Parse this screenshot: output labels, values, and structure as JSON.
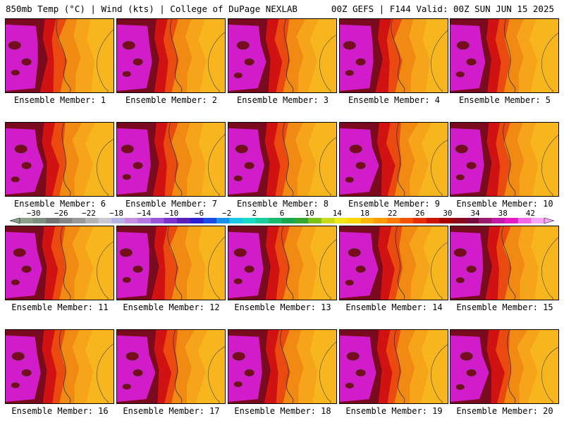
{
  "header": {
    "left": "850mb Temp (°C) | Wind (kts) | College of DuPage NEXLAB",
    "right": "00Z GEFS | F144 Valid: 00Z SUN JUN 15 2025"
  },
  "members": [
    {
      "label": "Ensemble Member: 1",
      "row": 0,
      "col": 0,
      "heat": 0.7
    },
    {
      "label": "Ensemble Member: 2",
      "row": 0,
      "col": 1,
      "heat": 0.72
    },
    {
      "label": "Ensemble Member: 3",
      "row": 0,
      "col": 2,
      "heat": 0.7
    },
    {
      "label": "Ensemble Member: 4",
      "row": 0,
      "col": 3,
      "heat": 0.8
    },
    {
      "label": "Ensemble Member: 5",
      "row": 0,
      "col": 4,
      "heat": 0.55
    },
    {
      "label": "Ensemble Member: 6",
      "row": 1,
      "col": 0,
      "heat": 0.6
    },
    {
      "label": "Ensemble Member: 7",
      "row": 1,
      "col": 1,
      "heat": 0.72
    },
    {
      "label": "Ensemble Member: 8",
      "row": 1,
      "col": 2,
      "heat": 0.62
    },
    {
      "label": "Ensemble Member: 9",
      "row": 1,
      "col": 3,
      "heat": 0.72
    },
    {
      "label": "Ensemble Member: 10",
      "row": 1,
      "col": 4,
      "heat": 0.6
    },
    {
      "label": "Ensemble Member: 11",
      "row": 2,
      "col": 0,
      "heat": 0.6
    },
    {
      "label": "Ensemble Member: 12",
      "row": 2,
      "col": 1,
      "heat": 0.7
    },
    {
      "label": "Ensemble Member: 13",
      "row": 2,
      "col": 2,
      "heat": 0.72
    },
    {
      "label": "Ensemble Member: 14",
      "row": 2,
      "col": 3,
      "heat": 0.82
    },
    {
      "label": "Ensemble Member: 15",
      "row": 2,
      "col": 4,
      "heat": 0.65
    },
    {
      "label": "Ensemble Member: 16",
      "row": 3,
      "col": 0,
      "heat": 0.6
    },
    {
      "label": "Ensemble Member: 17",
      "row": 3,
      "col": 1,
      "heat": 0.68
    },
    {
      "label": "Ensemble Member: 18",
      "row": 3,
      "col": 2,
      "heat": 0.72
    },
    {
      "label": "Ensemble Member: 19",
      "row": 3,
      "col": 3,
      "heat": 0.7
    },
    {
      "label": "Ensemble Member: 20",
      "row": 3,
      "col": 4,
      "heat": 0.58
    }
  ],
  "colorbar": {
    "ticks": [
      "−30",
      "−26",
      "−22",
      "−18",
      "−14",
      "−10",
      "−6",
      "−2",
      "2",
      "6",
      "10",
      "14",
      "18",
      "22",
      "26",
      "30",
      "34",
      "38",
      "42"
    ],
    "min": -32,
    "max": 44,
    "step": 2,
    "colors": [
      "#8aa08a",
      "#7f8f7f",
      "#737373",
      "#858585",
      "#999999",
      "#b3b3b3",
      "#c9c9d6",
      "#b3b3e6",
      "#c58fe0",
      "#b57ae0",
      "#9a55d9",
      "#7a33cc",
      "#5a1fb8",
      "#2b1fcf",
      "#1a4de6",
      "#1a8fe6",
      "#1ac7e6",
      "#19d9c7",
      "#1acca0",
      "#19b86e",
      "#1aa64d",
      "#33a633",
      "#7ac21a",
      "#c7d91a",
      "#f0e619",
      "#ffd600",
      "#ffb800",
      "#ff9a00",
      "#ff7a00",
      "#f55200",
      "#e62e00",
      "#cc1400",
      "#a60000",
      "#8a0a1a",
      "#7a0a3c",
      "#9a1a6e",
      "#c21aa6",
      "#e61ac7",
      "#f06ae6",
      "#f5a6f5"
    ]
  },
  "palette": {
    "magenta": "#d21ccc",
    "deepred": "#7a0a1e",
    "red": "#d11212",
    "orange_red": "#ea4a10",
    "orange": "#f08a12",
    "light_orange": "#f6a41a",
    "gold": "#f7b61e"
  }
}
